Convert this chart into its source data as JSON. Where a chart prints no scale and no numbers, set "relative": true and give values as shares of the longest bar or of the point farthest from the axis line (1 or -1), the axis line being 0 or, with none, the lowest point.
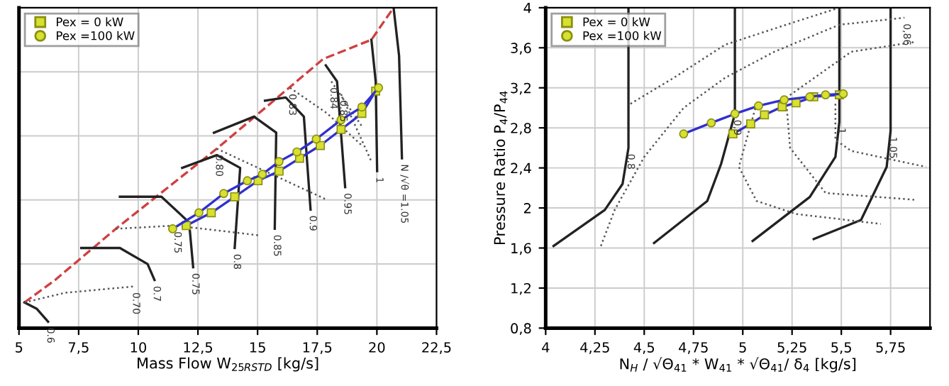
{
  "chart_data": [
    {
      "type": "line",
      "relative": true,
      "xlabel": "Mass Flow W$_{25RSTD}$ [kg/s]",
      "xlim": [
        5,
        22.5
      ],
      "xticks": [
        5,
        {
          "value": 7.5,
          "label": "7,5"
        },
        10,
        {
          "value": 12.5,
          "label": "12,5"
        },
        15,
        {
          "value": 17.5,
          "label": "17,5"
        },
        20,
        {
          "value": 22.5,
          "label": "22,5"
        }
      ],
      "grid": true,
      "legend": "top left",
      "tick_labels": "x",
      "series": [
        {
          "type": "line",
          "color": "#d04040",
          "line_style": "dashed",
          "marker": "none",
          "x": [
            5.23,
            6.51,
            9.06,
            13.29,
            17.75,
            19.77,
            20.7
          ],
          "values": [
            0.08,
            0.15,
            0.31,
            0.56,
            0.84,
            0.9,
            1.0
          ]
        },
        {
          "type": "line",
          "color": "#222222",
          "line_style": "solid",
          "marker": "none",
          "x": [
            5.23,
            5.75,
            6.22
          ],
          "values": [
            0.08,
            0.06,
            0.02
          ]
        },
        {
          "type": "line",
          "color": "#222222",
          "line_style": "solid",
          "marker": "none",
          "x": [
            7.61,
            9.23,
            10.39,
            10.68
          ],
          "values": [
            0.25,
            0.25,
            0.2,
            0.15
          ]
        },
        {
          "type": "line",
          "color": "#222222",
          "line_style": "solid",
          "marker": "none",
          "x": [
            9.23,
            10.97,
            12.13,
            12.3
          ],
          "values": [
            0.41,
            0.41,
            0.33,
            0.19
          ]
        },
        {
          "type": "line",
          "color": "#222222",
          "line_style": "solid",
          "marker": "none",
          "x": [
            11.84,
            13.29,
            14.27,
            14.04
          ],
          "values": [
            0.5,
            0.54,
            0.5,
            0.25
          ]
        },
        {
          "type": "line",
          "color": "#222222",
          "line_style": "solid",
          "marker": "none",
          "x": [
            13.17,
            14.85,
            15.78,
            15.72
          ],
          "values": [
            0.61,
            0.66,
            0.61,
            0.31
          ]
        },
        {
          "type": "line",
          "color": "#222222",
          "line_style": "solid",
          "marker": "none",
          "x": [
            15.31,
            16.18,
            16.94,
            17.22
          ],
          "values": [
            0.71,
            0.72,
            0.66,
            0.37
          ]
        },
        {
          "type": "line",
          "color": "#222222",
          "line_style": "solid",
          "marker": "none",
          "x": [
            17.86,
            18.33,
            18.67
          ],
          "values": [
            0.82,
            0.77,
            0.44
          ]
        },
        {
          "type": "line",
          "color": "#222222",
          "line_style": "solid",
          "marker": "none",
          "x": [
            19.77,
            19.95,
            20.01
          ],
          "values": [
            0.9,
            0.77,
            0.49
          ]
        },
        {
          "type": "line",
          "color": "#222222",
          "line_style": "solid",
          "marker": "none",
          "x": [
            20.7,
            20.93,
            21.05
          ],
          "values": [
            1.0,
            0.85,
            0.53
          ]
        },
        {
          "type": "line",
          "color": "#555555",
          "line_style": "dotted",
          "marker": "none",
          "x": [
            5.23,
            6.91,
            9.81
          ],
          "values": [
            0.08,
            0.11,
            0.13
          ]
        },
        {
          "type": "line",
          "color": "#555555",
          "line_style": "dotted",
          "marker": "none",
          "x": [
            9.06,
            11.55,
            15.02
          ],
          "values": [
            0.31,
            0.32,
            0.29
          ]
        },
        {
          "type": "line",
          "color": "#555555",
          "line_style": "dotted",
          "marker": "none",
          "x": [
            13.29,
            15.6,
            17.92
          ],
          "values": [
            0.56,
            0.48,
            0.4
          ]
        },
        {
          "type": "line",
          "color": "#555555",
          "line_style": "dotted",
          "marker": "none",
          "x": [
            16.36,
            17.92,
            19.37
          ],
          "values": [
            0.75,
            0.67,
            0.57
          ]
        },
        {
          "type": "line",
          "color": "#555555",
          "line_style": "dotted",
          "marker": "none",
          "x": [
            18.09,
            19.37
          ],
          "values": [
            0.77,
            0.63
          ]
        },
        {
          "type": "line",
          "color": "#555555",
          "line_style": "dotted",
          "marker": "none",
          "x": [
            18.5,
            19.77
          ],
          "values": [
            0.73,
            0.52
          ]
        },
        {
          "name": "Pex =100 kW",
          "color": "#3030d0",
          "line_style": "solid",
          "marker": "circle",
          "x": [
            11.44,
            12.54,
            13.58,
            14.57,
            15.2,
            15.9,
            16.65,
            17.46,
            18.5,
            19.37,
            20.07
          ],
          "values": [
            0.31,
            0.36,
            0.42,
            0.46,
            0.48,
            0.52,
            0.55,
            0.59,
            0.65,
            0.69,
            0.75
          ]
        },
        {
          "name": "Pex = 0 kW",
          "color": "#3030d0",
          "line_style": "solid",
          "marker": "square",
          "x": [
            12.01,
            13.06,
            14.04,
            15.02,
            15.9,
            16.76,
            17.63,
            18.5,
            19.37,
            19.95
          ],
          "values": [
            0.32,
            0.36,
            0.41,
            0.46,
            0.49,
            0.53,
            0.57,
            0.62,
            0.67,
            0.74
          ]
        }
      ],
      "annotations": [
        {
          "text": "0.6",
          "x": 6.22,
          "y": 0.02
        },
        {
          "text": "0.7",
          "x": 10.68,
          "y": 0.15
        },
        {
          "text": "0.75",
          "x": 12.3,
          "y": 0.19
        },
        {
          "text": "0.8",
          "x": 14.04,
          "y": 0.25
        },
        {
          "text": "0.85",
          "x": 15.72,
          "y": 0.31
        },
        {
          "text": "0.9",
          "x": 17.22,
          "y": 0.37
        },
        {
          "text": "0.95",
          "x": 18.67,
          "y": 0.44
        },
        {
          "text": "1",
          "x": 20.01,
          "y": 0.49
        },
        {
          "text": "N /√θ =1.05",
          "x": 21.05,
          "y": 0.53
        },
        {
          "text": "0.70",
          "x": 9.81,
          "y": 0.13
        },
        {
          "text": "0.75",
          "x": 11.55,
          "y": 0.32
        },
        {
          "text": "0.80",
          "x": 13.29,
          "y": 0.56
        },
        {
          "text": "0.83",
          "x": 16.36,
          "y": 0.75
        },
        {
          "text": "0.84",
          "x": 18.09,
          "y": 0.77
        },
        {
          "text": "0.85",
          "x": 18.5,
          "y": 0.73
        }
      ]
    },
    {
      "type": "line",
      "xlabel": "N$_{H}$ / √Θ$_{41}$ * W$_{41}$ * √Θ$_{41}$/ δ$_{4}$ [kg/s]",
      "ylabel": "Pressure Ratio P$_{4}$/P$_{44}$",
      "xlim": [
        4,
        5.95
      ],
      "xticks": [
        4,
        {
          "value": 4.25,
          "label": "4,25"
        },
        {
          "value": 4.5,
          "label": "4,5"
        },
        {
          "value": 4.75,
          "label": "4,75"
        },
        5,
        {
          "value": 5.25,
          "label": "5,25"
        },
        {
          "value": 5.5,
          "label": "5,5"
        },
        {
          "value": 5.75,
          "label": "5,75"
        }
      ],
      "ylim": [
        0.8,
        4
      ],
      "yticks": [
        {
          "value": 0.8,
          "label": "0,8"
        },
        {
          "value": 1.2,
          "label": "1,2"
        },
        {
          "value": 1.6,
          "label": "1,6"
        },
        2,
        {
          "value": 2.4,
          "label": "2,4"
        },
        {
          "value": 2.8,
          "label": "2,8"
        },
        {
          "value": 3.2,
          "label": "3,2"
        },
        {
          "value": 3.6,
          "label": "3,6"
        },
        4
      ],
      "grid": true,
      "legend": "top left",
      "series": [
        {
          "type": "line",
          "color": "#222222",
          "line_style": "solid",
          "marker": "none",
          "x": [
            4.42,
            4.42,
            4.39,
            4.3,
            4.04
          ],
          "values": [
            4.0,
            2.6,
            2.24,
            1.98,
            1.62
          ]
        },
        {
          "type": "line",
          "color": "#222222",
          "line_style": "solid",
          "marker": "none",
          "x": [
            4.96,
            4.96,
            4.89,
            4.82,
            4.55
          ],
          "values": [
            4.0,
            2.94,
            2.44,
            2.07,
            1.65
          ]
        },
        {
          "type": "line",
          "color": "#222222",
          "line_style": "solid",
          "marker": "none",
          "x": [
            5.49,
            5.49,
            5.47,
            5.34,
            5.05
          ],
          "values": [
            4.0,
            2.86,
            2.51,
            2.11,
            1.67
          ]
        },
        {
          "type": "line",
          "color": "#222222",
          "line_style": "solid",
          "marker": "none",
          "x": [
            5.75,
            5.75,
            5.73,
            5.6,
            5.36
          ],
          "values": [
            4.0,
            2.77,
            2.41,
            1.88,
            1.69
          ]
        },
        {
          "type": "line",
          "color": "#555555",
          "line_style": "dotted",
          "marker": "none",
          "x": [
            4.43,
            4.65,
            4.91,
            5.22,
            5.49
          ],
          "values": [
            3.04,
            3.3,
            3.63,
            3.83,
            4.0
          ]
        },
        {
          "type": "line",
          "color": "#555555",
          "line_style": "dotted",
          "marker": "none",
          "x": [
            4.28,
            4.35,
            4.5,
            4.7,
            4.91,
            5.16,
            5.49,
            5.82
          ],
          "values": [
            1.62,
            1.98,
            2.51,
            3.0,
            3.3,
            3.56,
            3.83,
            3.9
          ]
        },
        {
          "type": "line",
          "color": "#555555",
          "line_style": "dotted",
          "marker": "none",
          "x": [
            5.22,
            5.55,
            5.88
          ],
          "values": [
            3.1,
            3.56,
            3.66
          ]
        },
        {
          "type": "line",
          "color": "#555555",
          "line_style": "dotted",
          "marker": "none",
          "x": [
            5.47,
            5.47,
            5.55,
            5.93
          ],
          "values": [
            3.04,
            2.68,
            2.57,
            2.41
          ]
        },
        {
          "type": "line",
          "color": "#555555",
          "line_style": "dotted",
          "marker": "none",
          "x": [
            5.22,
            5.24,
            5.42,
            5.88
          ],
          "values": [
            3.08,
            2.6,
            2.15,
            2.08
          ]
        },
        {
          "type": "line",
          "color": "#555555",
          "line_style": "dotted",
          "marker": "none",
          "x": [
            5.07,
            4.98,
            5.07,
            5.27,
            5.7
          ],
          "values": [
            3.04,
            2.41,
            2.07,
            1.94,
            1.84
          ]
        },
        {
          "name": "Pex = 0 kW",
          "color": "#3030d0",
          "line_style": "solid",
          "marker": "square",
          "x": [
            4.95,
            5.04,
            5.11,
            5.2,
            5.27,
            5.36,
            5.49
          ],
          "values": [
            2.74,
            2.84,
            2.93,
            3.01,
            3.05,
            3.11,
            3.13
          ]
        },
        {
          "name": "Pex =100 kW",
          "color": "#3030d0",
          "line_style": "solid",
          "marker": "circle",
          "x": [
            4.7,
            4.84,
            4.96,
            5.08,
            5.21,
            5.34,
            5.42,
            5.51
          ],
          "values": [
            2.74,
            2.85,
            2.94,
            3.02,
            3.08,
            3.11,
            3.13,
            3.14
          ]
        }
      ],
      "annotations": [
        {
          "text": "0,8",
          "x": 4.42,
          "y": 2.6
        },
        {
          "text": "0,9",
          "x": 4.96,
          "y": 2.94
        },
        {
          "text": "1",
          "x": 5.49,
          "y": 2.86
        },
        {
          "text": "1,05",
          "x": 5.75,
          "y": 2.77
        },
        {
          "text": "0,86",
          "x": 5.82,
          "y": 3.9
        }
      ]
    }
  ]
}
